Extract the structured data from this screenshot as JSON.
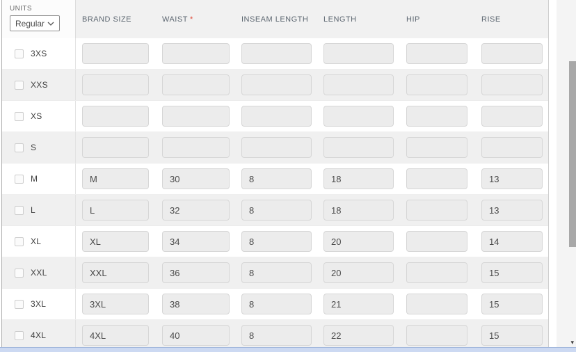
{
  "units": {
    "label": "UNITS",
    "selected": "Regular"
  },
  "table": {
    "columns": [
      {
        "key": "brand_size",
        "label": "BRAND SIZE",
        "required_marker": ""
      },
      {
        "key": "waist",
        "label": "WAIST",
        "required_marker": "*"
      },
      {
        "key": "inseam_length",
        "label": "INSEAM LENGTH",
        "required_marker": ""
      },
      {
        "key": "length",
        "label": "LENGTH",
        "required_marker": ""
      },
      {
        "key": "hip",
        "label": "HIP",
        "required_marker": ""
      },
      {
        "key": "rise",
        "label": "RISE",
        "required_marker": ""
      }
    ],
    "rows": [
      {
        "size": "3XS",
        "brand_size": "",
        "waist": "",
        "inseam_length": "",
        "length": "",
        "hip": "",
        "rise": ""
      },
      {
        "size": "XXS",
        "brand_size": "",
        "waist": "",
        "inseam_length": "",
        "length": "",
        "hip": "",
        "rise": ""
      },
      {
        "size": "XS",
        "brand_size": "",
        "waist": "",
        "inseam_length": "",
        "length": "",
        "hip": "",
        "rise": ""
      },
      {
        "size": "S",
        "brand_size": "",
        "waist": "",
        "inseam_length": "",
        "length": "",
        "hip": "",
        "rise": ""
      },
      {
        "size": "M",
        "brand_size": "M",
        "waist": "30",
        "inseam_length": "8",
        "length": "18",
        "hip": "",
        "rise": "13"
      },
      {
        "size": "L",
        "brand_size": "L",
        "waist": "32",
        "inseam_length": "8",
        "length": "18",
        "hip": "",
        "rise": "13"
      },
      {
        "size": "XL",
        "brand_size": "XL",
        "waist": "34",
        "inseam_length": "8",
        "length": "20",
        "hip": "",
        "rise": "14"
      },
      {
        "size": "XXL",
        "brand_size": "XXL",
        "waist": "36",
        "inseam_length": "8",
        "length": "20",
        "hip": "",
        "rise": "15"
      },
      {
        "size": "3XL",
        "brand_size": "3XL",
        "waist": "38",
        "inseam_length": "8",
        "length": "21",
        "hip": "",
        "rise": "15"
      },
      {
        "size": "4XL",
        "brand_size": "4XL",
        "waist": "40",
        "inseam_length": "8",
        "length": "22",
        "hip": "",
        "rise": "15"
      }
    ]
  },
  "scrollbar": {
    "down_arrow": "▾"
  },
  "colors": {
    "header_text": "#5d6771",
    "required": "#e04b3a",
    "header_bg": "#f1f1f1",
    "row_alt_bg": "#f0f0f0",
    "input_bg": "#ececec",
    "input_border": "#d6d6d6",
    "scroll_thumb": "#a8a8a8",
    "bottom_bar_bg": "#ccd9f2",
    "bottom_bar_border": "#a3b8dc"
  }
}
